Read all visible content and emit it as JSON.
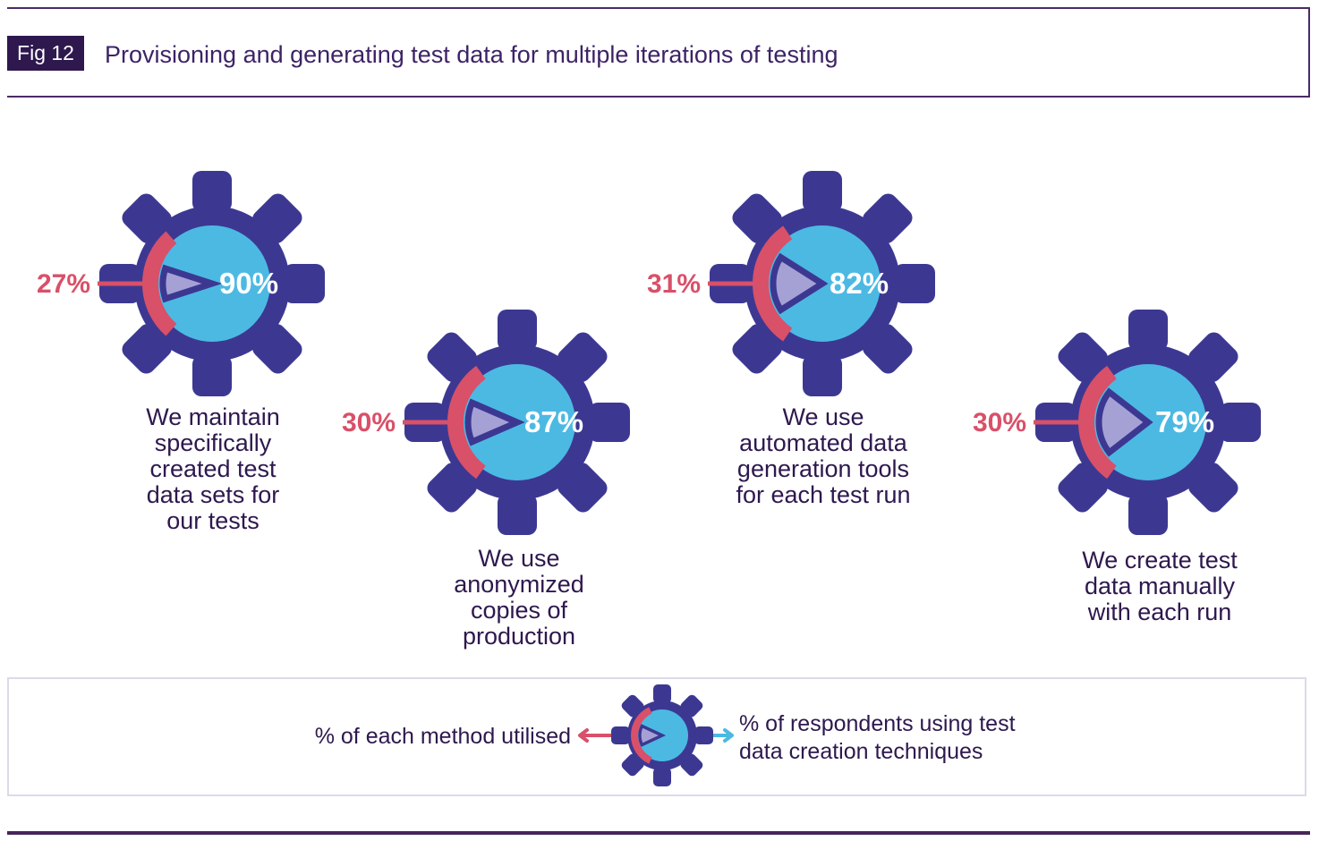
{
  "header": {
    "fig_label": "Fig 12",
    "title": "Provisioning and generating test data for multiple iterations of testing"
  },
  "colors": {
    "gear_purple": "#3c3892",
    "circle_blue": "#4cb9e3",
    "wedge_lavender": "#a5a1d5",
    "accent_red": "#d95069",
    "text_dark_purple": "#2e184e",
    "title_purple": "#3d2366",
    "rule_purple": "#4b2a66",
    "legend_border": "#dcdae8"
  },
  "chart_data": {
    "type": "pie",
    "variant": "gear-shaped pie infographic, 4 gears",
    "title": "Provisioning and generating test data for multiple iterations of testing",
    "legend_position": "bottom",
    "items": [
      {
        "method_utilised_pct": 27,
        "respondents_pct": 90,
        "method_pct_label": "27%",
        "respondents_pct_label": "90%",
        "label": "We maintain\nspecifically\ncreated test\ndata sets for\nour tests"
      },
      {
        "method_utilised_pct": 30,
        "respondents_pct": 87,
        "method_pct_label": "30%",
        "respondents_pct_label": "87%",
        "label": "We use\nanonymized\ncopies of\nproduction"
      },
      {
        "method_utilised_pct": 31,
        "respondents_pct": 82,
        "method_pct_label": "31%",
        "respondents_pct_label": "82%",
        "label": "We use\nautomated data\ngeneration tools\nfor each test run"
      },
      {
        "method_utilised_pct": 30,
        "respondents_pct": 79,
        "method_pct_label": "30%",
        "respondents_pct_label": "79%",
        "label": "We create test\ndata manually\nwith each run"
      }
    ],
    "legend": {
      "left": "% of each method utilised",
      "right": "% of respondents using test\ndata creation techniques"
    }
  }
}
